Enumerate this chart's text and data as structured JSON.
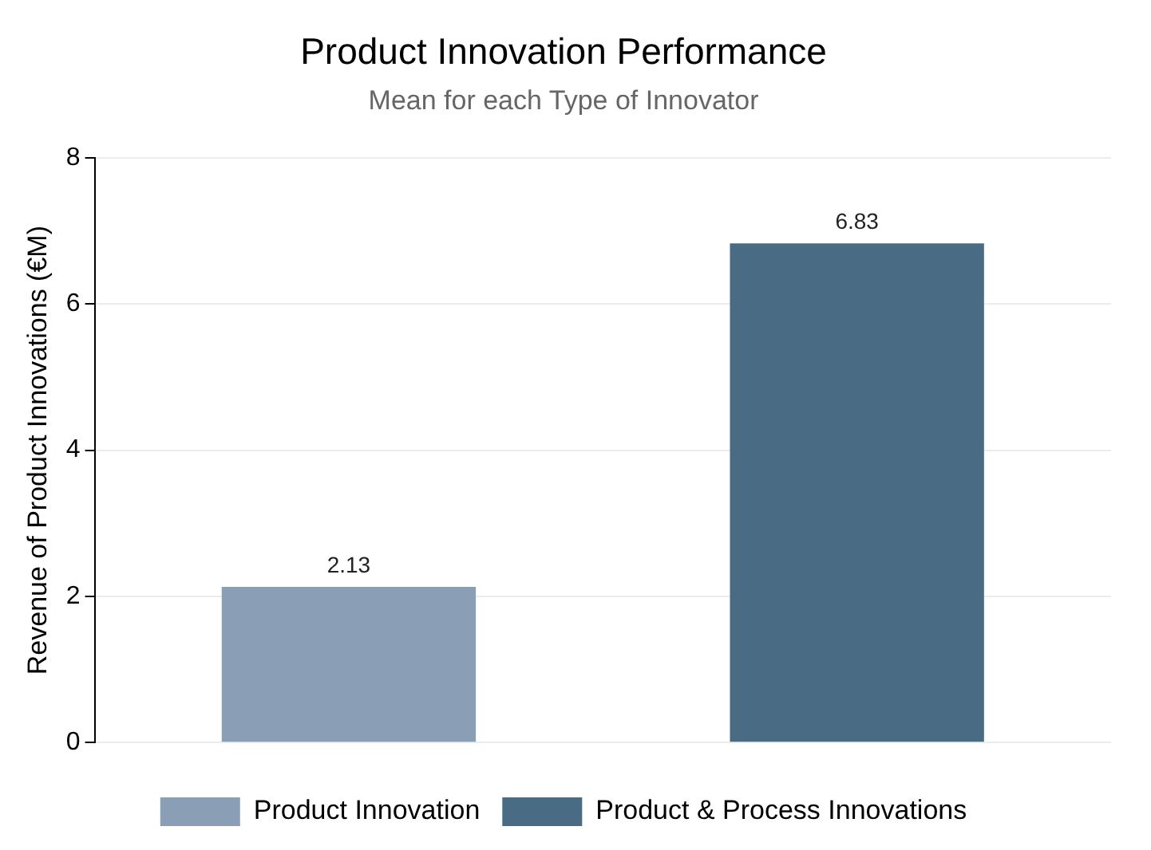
{
  "chart_data": {
    "type": "bar",
    "title": "Product Innovation Performance",
    "subtitle": "Mean for each Type of Innovator",
    "ylabel": "Revenue of Product Innovations (€M)",
    "categories": [
      null,
      null
    ],
    "series": [
      {
        "name": "Product Innovation",
        "color": "#8a9fb5",
        "values": [
          2.13,
          null
        ]
      },
      {
        "name": "Product & Process Innovations",
        "color": "#496b84",
        "values": [
          null,
          6.83
        ]
      }
    ],
    "ylim": [
      0,
      8
    ],
    "yticks": [
      0,
      2,
      4,
      6,
      8
    ],
    "grid": "y",
    "legend": "bottom",
    "data_labels": true
  }
}
